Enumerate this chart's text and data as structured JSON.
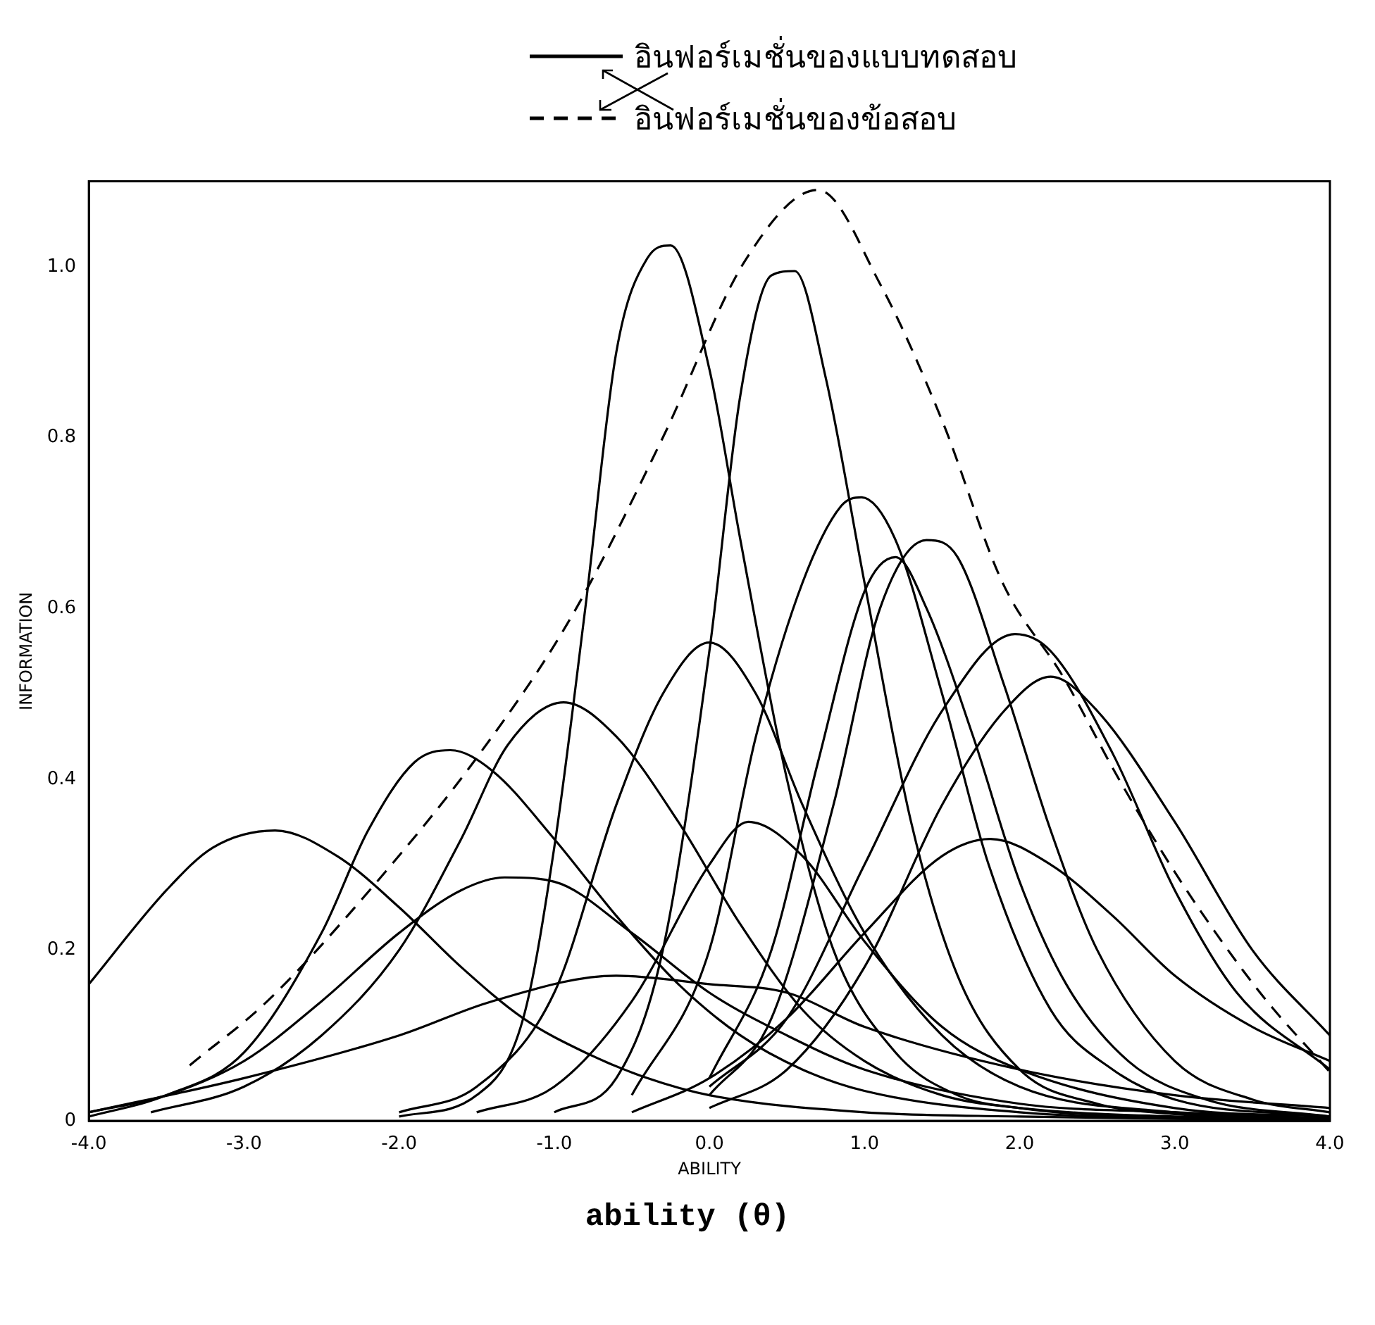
{
  "chart_data": {
    "type": "line",
    "xlabel": "ABILITY",
    "ylabel": "INFORMATION",
    "annotations": [
      "ability (θ)"
    ],
    "xlim": [
      -4,
      4
    ],
    "ylim": [
      0,
      1.1
    ],
    "xticks": [
      {
        "value": -4,
        "label": "-4.0"
      },
      {
        "value": -3,
        "label": "-3.0"
      },
      {
        "value": -2,
        "label": "-2.0"
      },
      {
        "value": -1,
        "label": "-1.0"
      },
      {
        "value": 0,
        "label": "0.0"
      },
      {
        "value": 1,
        "label": "1.0"
      },
      {
        "value": 2,
        "label": "2.0"
      },
      {
        "value": 3,
        "label": "3.0"
      },
      {
        "value": 4,
        "label": "4.0"
      }
    ],
    "yticks": [
      0,
      0.2,
      0.4,
      0.6,
      0.8,
      {
        "value": 1.0,
        "label": "1.0"
      }
    ],
    "grid": false,
    "legend": "top",
    "marker": "none",
    "series": [
      {
        "name": "อินฟอร์เมชั่นของแบบทดสอบ",
        "color": "#000000",
        "line_style": "solid",
        "x": [
          -4,
          -3.5,
          -3.2,
          -2.8,
          -2.4,
          -2.0,
          -1.6,
          -1.2,
          -0.8,
          -0.4,
          0,
          1,
          2,
          4
        ],
        "values": [
          0.16,
          0.27,
          0.32,
          0.34,
          0.31,
          0.25,
          0.18,
          0.12,
          0.08,
          0.05,
          0.03,
          0.01,
          0.005,
          0
        ]
      },
      {
        "color": "#000000",
        "line_style": "solid",
        "x": [
          -4,
          -3.5,
          -3,
          -2.5,
          -2.2,
          -1.9,
          -1.67,
          -1.4,
          -1.0,
          -0.6,
          -0.2,
          0.2,
          0.6,
          1.0,
          2,
          4
        ],
        "values": [
          0.005,
          0.03,
          0.08,
          0.22,
          0.34,
          0.42,
          0.434,
          0.41,
          0.33,
          0.24,
          0.16,
          0.1,
          0.06,
          0.035,
          0.01,
          0
        ]
      },
      {
        "color": "#000000",
        "line_style": "solid",
        "x": [
          -3.6,
          -3,
          -2.5,
          -2,
          -1.6,
          -1.3,
          -0.94,
          -0.6,
          -0.2,
          0.2,
          0.6,
          1,
          1.5,
          2,
          3,
          3.6
        ],
        "values": [
          0.01,
          0.04,
          0.1,
          0.2,
          0.33,
          0.44,
          0.49,
          0.45,
          0.35,
          0.23,
          0.13,
          0.07,
          0.03,
          0.015,
          0.005,
          0.003
        ]
      },
      {
        "color": "#000000",
        "line_style": "solid",
        "x": [
          -4,
          -3.5,
          -3,
          -2.5,
          -2,
          -1.6,
          -1.32,
          -1,
          -0.5,
          0,
          0.5,
          1,
          2,
          3,
          4
        ],
        "values": [
          0.01,
          0.03,
          0.07,
          0.14,
          0.22,
          0.27,
          0.285,
          0.28,
          0.22,
          0.15,
          0.1,
          0.06,
          0.02,
          0.01,
          0.003
        ]
      },
      {
        "color": "#000000",
        "line_style": "solid",
        "x": [
          -4,
          -3,
          -2,
          -1.4,
          -0.6,
          0,
          0.5,
          1,
          2,
          3,
          4
        ],
        "values": [
          0.01,
          0.05,
          0.1,
          0.14,
          0.17,
          0.16,
          0.15,
          0.11,
          0.06,
          0.03,
          0.015
        ]
      },
      {
        "color": "#000000",
        "line_style": "solid",
        "x": [
          -2,
          -1.5,
          -1.2,
          -1,
          -0.8,
          -0.6,
          -0.4,
          -0.25,
          0,
          0.2,
          0.5,
          0.8,
          1.2,
          1.6,
          2,
          3,
          4
        ],
        "values": [
          0.005,
          0.03,
          0.12,
          0.32,
          0.6,
          0.9,
          1.01,
          1.025,
          0.88,
          0.68,
          0.4,
          0.2,
          0.08,
          0.03,
          0.015,
          0.003,
          0.001
        ]
      },
      {
        "color": "#000000",
        "line_style": "solid",
        "x": [
          -2,
          -1.5,
          -1,
          -0.6,
          -0.3,
          0,
          0.3,
          0.6,
          1,
          1.5,
          2,
          3,
          4
        ],
        "values": [
          0.01,
          0.04,
          0.15,
          0.37,
          0.5,
          0.56,
          0.5,
          0.37,
          0.22,
          0.1,
          0.04,
          0.01,
          0.003
        ]
      },
      {
        "color": "#000000",
        "line_style": "solid",
        "x": [
          -1,
          -0.6,
          -0.3,
          0,
          0.2,
          0.4,
          0.55,
          0.75,
          1.0,
          1.3,
          1.6,
          2,
          2.5,
          3,
          4
        ],
        "values": [
          0.01,
          0.05,
          0.2,
          0.55,
          0.85,
          0.99,
          0.995,
          0.87,
          0.63,
          0.35,
          0.17,
          0.06,
          0.02,
          0.008,
          0.002
        ]
      },
      {
        "color": "#000000",
        "line_style": "solid",
        "x": [
          -0.5,
          0,
          0.3,
          0.6,
          0.85,
          0.98,
          1.2,
          1.5,
          1.8,
          2.2,
          2.6,
          3,
          4
        ],
        "values": [
          0.03,
          0.2,
          0.45,
          0.63,
          0.72,
          0.73,
          0.68,
          0.5,
          0.3,
          0.13,
          0.06,
          0.025,
          0.005
        ]
      },
      {
        "color": "#000000",
        "line_style": "solid",
        "x": [
          0,
          0.4,
          0.7,
          1.0,
          1.2,
          1.4,
          1.7,
          2.0,
          2.3,
          2.7,
          3.2,
          4
        ],
        "values": [
          0.05,
          0.2,
          0.42,
          0.62,
          0.66,
          0.6,
          0.45,
          0.28,
          0.16,
          0.07,
          0.025,
          0.005
        ]
      },
      {
        "color": "#000000",
        "line_style": "solid",
        "x": [
          0,
          0.4,
          0.8,
          1.1,
          1.4,
          1.6,
          1.9,
          2.2,
          2.5,
          3.0,
          3.5,
          4
        ],
        "values": [
          0.03,
          0.12,
          0.37,
          0.6,
          0.68,
          0.66,
          0.51,
          0.34,
          0.2,
          0.07,
          0.025,
          0.01
        ]
      },
      {
        "color": "#000000",
        "line_style": "solid",
        "x": [
          0,
          0.5,
          1,
          1.5,
          1.97,
          2.2,
          2.6,
          3.0,
          3.4,
          4
        ],
        "values": [
          0.04,
          0.12,
          0.3,
          0.48,
          0.57,
          0.55,
          0.43,
          0.27,
          0.15,
          0.06
        ]
      },
      {
        "color": "#000000",
        "line_style": "solid",
        "x": [
          0,
          0.5,
          1,
          1.5,
          1.9,
          2.2,
          2.5,
          3,
          3.5,
          4
        ],
        "values": [
          0.015,
          0.06,
          0.18,
          0.37,
          0.48,
          0.52,
          0.48,
          0.35,
          0.2,
          0.1
        ]
      },
      {
        "color": "#000000",
        "line_style": "solid",
        "x": [
          -0.5,
          0,
          0.5,
          1,
          1.5,
          1.81,
          2.2,
          2.6,
          3,
          3.5,
          4
        ],
        "values": [
          0.01,
          0.05,
          0.12,
          0.22,
          0.31,
          0.33,
          0.3,
          0.24,
          0.17,
          0.11,
          0.07
        ]
      },
      {
        "color": "#000000",
        "line_style": "solid",
        "x": [
          -1.5,
          -1,
          -0.5,
          0,
          0.25,
          0.6,
          1,
          1.5,
          2,
          3,
          4
        ],
        "values": [
          0.01,
          0.04,
          0.14,
          0.3,
          0.35,
          0.31,
          0.21,
          0.11,
          0.06,
          0.015,
          0.005
        ]
      },
      {
        "name": "อินฟอร์เมชั่นของข้อสอบ",
        "color": "#000000",
        "line_style": "dashed",
        "x": [
          -3.35,
          -2.85,
          -2.19,
          -1.48,
          -0.89,
          -0.3,
          0.24,
          0.7,
          1.1,
          1.5,
          1.89,
          2.28,
          2.64,
          3.04,
          3.55,
          4
        ],
        "values": [
          0.065,
          0.14,
          0.27,
          0.43,
          0.59,
          0.8,
          1.01,
          1.09,
          0.98,
          0.82,
          0.63,
          0.52,
          0.4,
          0.28,
          0.15,
          0.057
        ]
      }
    ]
  }
}
